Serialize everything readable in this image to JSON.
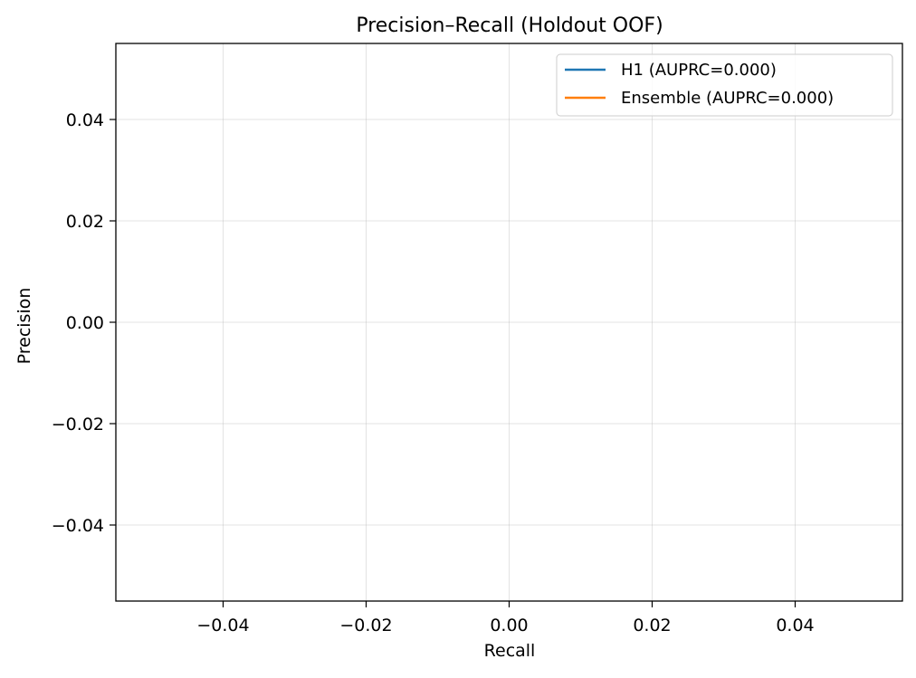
{
  "chart_data": {
    "type": "line",
    "title": "Precision–Recall (Holdout OOF)",
    "xlabel": "Recall",
    "ylabel": "Precision",
    "xlim": [
      -0.055,
      0.055
    ],
    "ylim": [
      -0.055,
      0.055
    ],
    "x_ticks": [
      -0.04,
      -0.02,
      0.0,
      0.02,
      0.04
    ],
    "x_tick_labels": [
      "−0.04",
      "−0.02",
      "0.00",
      "0.02",
      "0.04"
    ],
    "y_ticks": [
      -0.04,
      -0.02,
      0.0,
      0.02,
      0.04
    ],
    "y_tick_labels": [
      "−0.04",
      "−0.02",
      "0.00",
      "0.02",
      "0.04"
    ],
    "grid": true,
    "legend_position": "top-right",
    "series": [
      {
        "name": "H1 (AUPRC=0.000)",
        "color": "#1f77b4",
        "x": [],
        "y": []
      },
      {
        "name": "Ensemble (AUPRC=0.000)",
        "color": "#ff7f0e",
        "x": [],
        "y": []
      }
    ]
  }
}
